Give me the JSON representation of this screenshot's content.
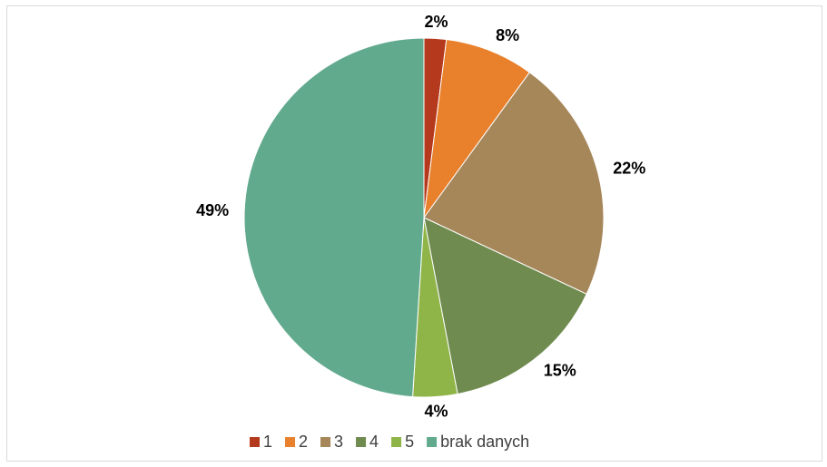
{
  "chart_data": {
    "type": "pie",
    "categories": [
      "1",
      "2",
      "3",
      "4",
      "5",
      "brak danych"
    ],
    "values": [
      2,
      8,
      22,
      15,
      4,
      49
    ],
    "value_labels": [
      "2%",
      "8%",
      "22%",
      "15%",
      "4%",
      "49%"
    ],
    "colors": [
      "#b5391c",
      "#e8802c",
      "#a6875a",
      "#6f8b4f",
      "#8fb447",
      "#62aa8e"
    ],
    "legend": "bottom"
  }
}
